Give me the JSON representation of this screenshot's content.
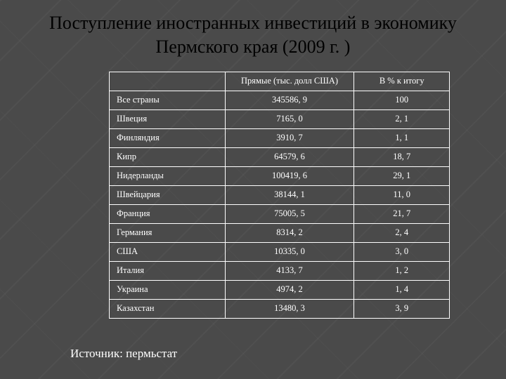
{
  "title_line1": "Поступление иностранных инвестиций в экономику",
  "title_line2": "Пермского края (2009 г. )",
  "table": {
    "columns": [
      "",
      "Прямые (тыс. долл США)",
      "В % к итогу"
    ],
    "column_align": [
      "left",
      "center",
      "center"
    ],
    "column_widths_pct": [
      34,
      38,
      28
    ],
    "rows": [
      [
        "Все страны",
        "345586, 9",
        "100"
      ],
      [
        "Швеция",
        "7165, 0",
        "2, 1"
      ],
      [
        "Финляндия",
        "3910, 7",
        "1, 1"
      ],
      [
        "Кипр",
        "64579, 6",
        "18, 7"
      ],
      [
        "Нидерланды",
        "100419, 6",
        "29, 1"
      ],
      [
        "Швейцария",
        "38144, 1",
        "11, 0"
      ],
      [
        "Франция",
        "75005, 5",
        "21, 7"
      ],
      [
        "Германия",
        "8314, 2",
        "2, 4"
      ],
      [
        "США",
        "10335, 0",
        "3, 0"
      ],
      [
        "Италия",
        "4133, 7",
        "1, 2"
      ],
      [
        "Украина",
        "4974, 2",
        "1, 4"
      ],
      [
        "Казахстан",
        "13480, 3",
        "3, 9"
      ]
    ],
    "border_color": "#ffffff",
    "text_color": "#ffffff",
    "font_size_pt": 9.5,
    "font_family": "Times New Roman"
  },
  "background_color": "#4a4a4a",
  "title_color": "#000000",
  "title_fontsize_pt": 20,
  "source_label": "Источник: пермьстат",
  "source_fontsize_pt": 13
}
